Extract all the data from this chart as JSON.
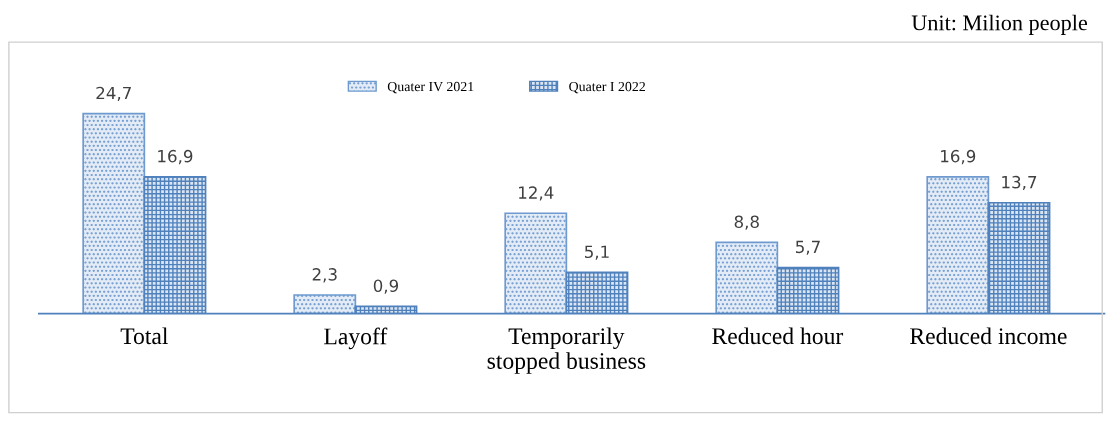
{
  "chart_data": {
    "type": "bar",
    "categories": [
      "Total",
      "Layoff",
      "Temporarily\nstopped business",
      "Reduced hour",
      "Reduced income"
    ],
    "series": [
      {
        "name": "Quater IV 2021",
        "color": "#6f9ad0",
        "values": [
          24.7,
          2.3,
          12.4,
          8.8,
          16.9
        ],
        "value_labels": [
          "24,7",
          "2,3",
          "12,4",
          "8,8",
          "16,9"
        ]
      },
      {
        "name": "Quater I 2022",
        "color": "#4f81bd",
        "values": [
          16.9,
          0.9,
          5.1,
          5.7,
          13.7
        ],
        "value_labels": [
          "16,9",
          "0,9",
          "5,1",
          "5,7",
          "13,7"
        ]
      }
    ],
    "annotations": [
      "Unit: Milion people"
    ],
    "legend": "top",
    "grid": false
  }
}
